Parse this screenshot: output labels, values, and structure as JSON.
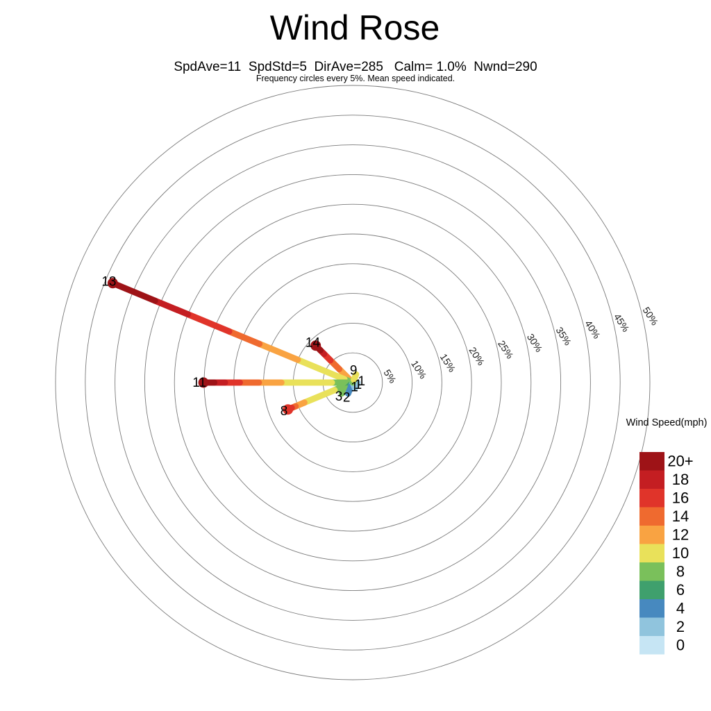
{
  "header": {
    "title": "Wind Rose",
    "stats": "SpdAve=11  SpdStd=5  DirAve=285   Calm= 1.0%  Nwnd=290",
    "note": "Frequency circles every 5%. Mean speed indicated."
  },
  "legend": {
    "title": "Wind Speed(mph)",
    "entries": [
      {
        "label": "20+",
        "speed": "20",
        "color": "#9e1317"
      },
      {
        "label": "18",
        "speed": "18",
        "color": "#c41e22"
      },
      {
        "label": "16",
        "speed": "16",
        "color": "#e0342a"
      },
      {
        "label": "14",
        "speed": "14",
        "color": "#ef6a2f"
      },
      {
        "label": "12",
        "speed": "12",
        "color": "#f9a342"
      },
      {
        "label": "10",
        "speed": "10",
        "color": "#e9e15a"
      },
      {
        "label": "8",
        "speed": "8",
        "color": "#7ac05b"
      },
      {
        "label": "6",
        "speed": "6",
        "color": "#3fa06d"
      },
      {
        "label": "4",
        "speed": "4",
        "color": "#4789bf"
      },
      {
        "label": "2",
        "speed": "2",
        "color": "#90c4dd"
      },
      {
        "label": "0",
        "speed": "0",
        "color": "#c6e5f4"
      }
    ]
  },
  "chart_data": {
    "type": "wind_rose",
    "title": "Wind Rose",
    "speed_avg_mph": 11,
    "speed_std_mph": 5,
    "dir_avg_deg": 285,
    "calm_pct": 1.0,
    "n_obs": 290,
    "ring_interval_pct": 5,
    "ring_count": 10,
    "ring_labels": [
      "5%",
      "10%",
      "15%",
      "20%",
      "25%",
      "30%",
      "35%",
      "40%",
      "45%",
      "50%"
    ],
    "spokes": [
      {
        "dir": "NW",
        "angle_deg": 315,
        "mean_speed": 14,
        "total_pct": 8.8,
        "segments": [
          [
            "10",
            0,
            1.0
          ],
          [
            "12",
            1.0,
            3.2
          ],
          [
            "14",
            3.2,
            5.3
          ],
          [
            "16",
            5.3,
            6.8
          ],
          [
            "18",
            6.8,
            7.7
          ],
          [
            "20",
            7.7,
            8.8
          ]
        ]
      },
      {
        "dir": "WNW",
        "angle_deg": 292.5,
        "mean_speed": 13,
        "total_pct": 43.7,
        "segments": [
          [
            "8",
            0,
            1.5
          ],
          [
            "10",
            1.5,
            10
          ],
          [
            "12",
            10,
            17
          ],
          [
            "14",
            17,
            22.5
          ],
          [
            "16",
            22.5,
            30
          ],
          [
            "18",
            30,
            36
          ],
          [
            "20",
            36,
            43.7
          ]
        ]
      },
      {
        "dir": "W",
        "angle_deg": 270,
        "mean_speed": 11,
        "total_pct": 25.1,
        "segments": [
          [
            "8",
            0,
            3.5
          ],
          [
            "10",
            3.5,
            12
          ],
          [
            "12",
            12,
            15.8
          ],
          [
            "14",
            15.8,
            19
          ],
          [
            "16",
            19,
            21.5
          ],
          [
            "18",
            21.5,
            23.3
          ],
          [
            "20",
            23.3,
            25.1
          ]
        ]
      },
      {
        "dir": "WSW",
        "angle_deg": 247.5,
        "mean_speed": 8,
        "total_pct": 11.8,
        "segments": [
          [
            "8",
            0,
            3.3
          ],
          [
            "10",
            3.3,
            8.8
          ],
          [
            "12",
            8.8,
            10.4
          ],
          [
            "14",
            10.4,
            11.1
          ],
          [
            "16",
            11.1,
            11.8
          ]
        ]
      },
      {
        "dir": "SW",
        "angle_deg": 225,
        "mean_speed": 3,
        "total_pct": 2.6,
        "segments": [
          [
            "6",
            0,
            1.4
          ],
          [
            "8",
            1.4,
            2.6
          ]
        ]
      },
      {
        "dir": "SSW",
        "angle_deg": 202.5,
        "mean_speed": 2,
        "total_pct": 2.0,
        "segments": [
          [
            "2",
            0,
            0.6
          ],
          [
            "4",
            0.6,
            2.0
          ]
        ]
      },
      {
        "dir": "SSE",
        "angle_deg": 157.5,
        "mean_speed": 1,
        "total_pct": 1.0,
        "label_nudge": [
          -3,
          -7
        ],
        "segments": [
          [
            "2",
            0,
            1.0
          ]
        ]
      },
      {
        "dir": "ESE",
        "angle_deg": 112.5,
        "mean_speed": 1,
        "total_pct": 0.8,
        "label_nudge": [
          -4,
          -2
        ],
        "segments": [
          [
            "0",
            0,
            0.3
          ],
          [
            "2",
            0.3,
            0.8
          ]
        ]
      },
      {
        "dir": "E",
        "angle_deg": 90,
        "mean_speed": 1,
        "total_pct": 0.8,
        "label_nudge": [
          0,
          -2
        ],
        "segments": [
          [
            "0",
            0,
            0.4
          ],
          [
            "2",
            0.4,
            0.8
          ]
        ]
      },
      {
        "dir": "NNE",
        "angle_deg": 22.5,
        "mean_speed": 9,
        "total_pct": 1.5,
        "label_nudge": [
          -6,
          0
        ],
        "segments": [
          [
            "8",
            0,
            0.5
          ],
          [
            "10",
            0.5,
            1.5
          ]
        ]
      }
    ]
  }
}
